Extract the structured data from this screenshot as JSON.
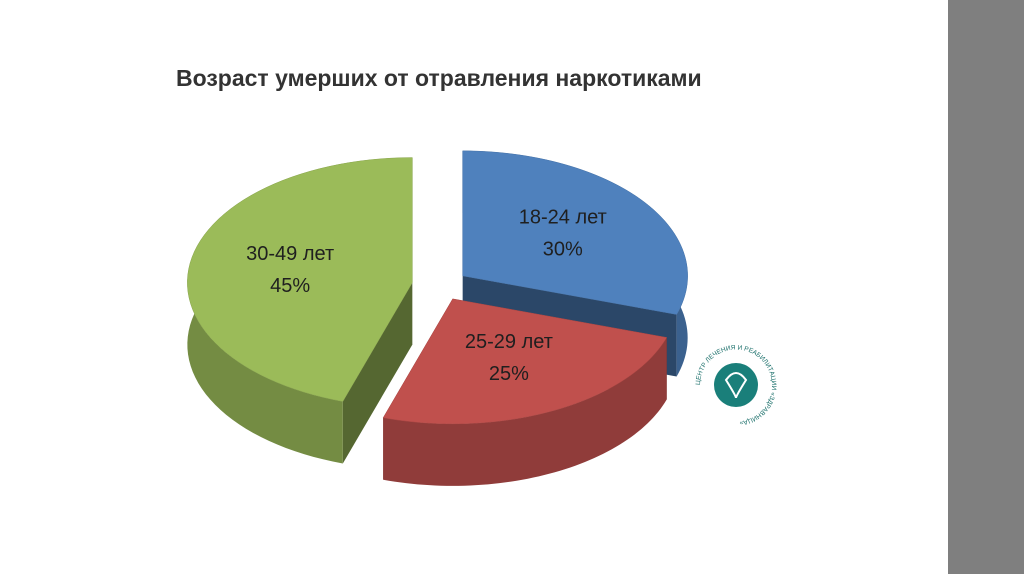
{
  "chart_data": {
    "type": "pie",
    "title": "Возраст умерших от отравления наркотиками",
    "categories": [
      "18-24 лет",
      "25-29 лет",
      "30-49 лет"
    ],
    "values": [
      30,
      25,
      45
    ],
    "value_labels": [
      "30%",
      "25%",
      "45%"
    ],
    "colors": [
      "#4f81bd",
      "#c0504d",
      "#9bbb59"
    ]
  },
  "logo": {
    "text": "ЦЕНТР ЛЕЧЕНИЯ И РЕАБИЛИТАЦИИ «ЗДРАВНИЦА»"
  }
}
